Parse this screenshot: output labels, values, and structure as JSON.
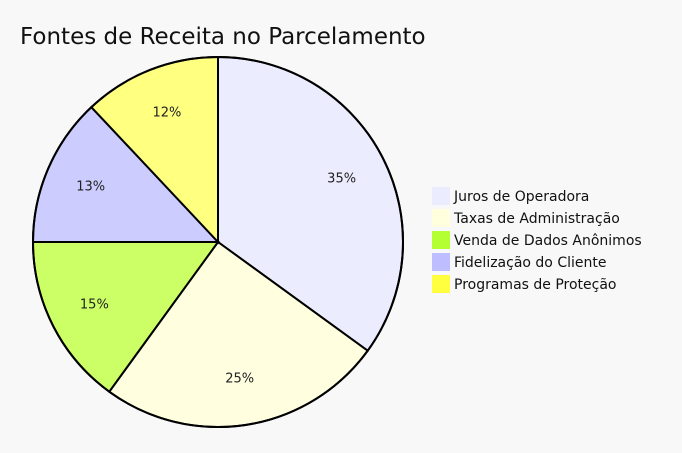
{
  "chart_data": {
    "type": "pie",
    "title": "Fontes de Receita no Parcelamento",
    "legend_position": "right",
    "slices": [
      {
        "label": "Juros de Operadora",
        "value": 35,
        "display": "35%",
        "color": "#ECECFF",
        "legend_color": "#ECECFF"
      },
      {
        "label": "Taxas de Administração",
        "value": 25,
        "display": "25%",
        "color": "#FFFFE0",
        "legend_color": "#FFFFDE"
      },
      {
        "label": "Venda de Dados Anônimos",
        "value": 15,
        "display": "15%",
        "color": "#CCFF66",
        "legend_color": "#B3FF33"
      },
      {
        "label": "Fidelização do Cliente",
        "value": 13,
        "display": "13%",
        "color": "#CCCCFF",
        "legend_color": "#BDBDFF"
      },
      {
        "label": "Programas de Proteção",
        "value": 12,
        "display": "12%",
        "color": "#FFFF80",
        "legend_color": "#FFFF40"
      }
    ]
  }
}
